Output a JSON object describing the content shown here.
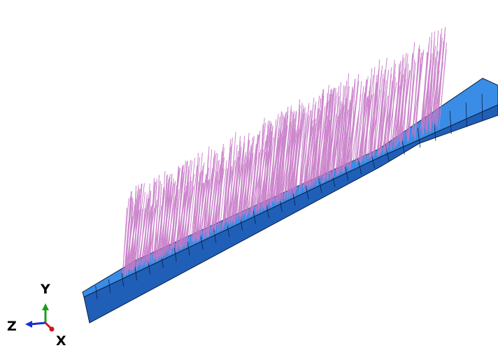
{
  "triad": {
    "y": "Y",
    "z": "Z",
    "x": "X"
  }
}
